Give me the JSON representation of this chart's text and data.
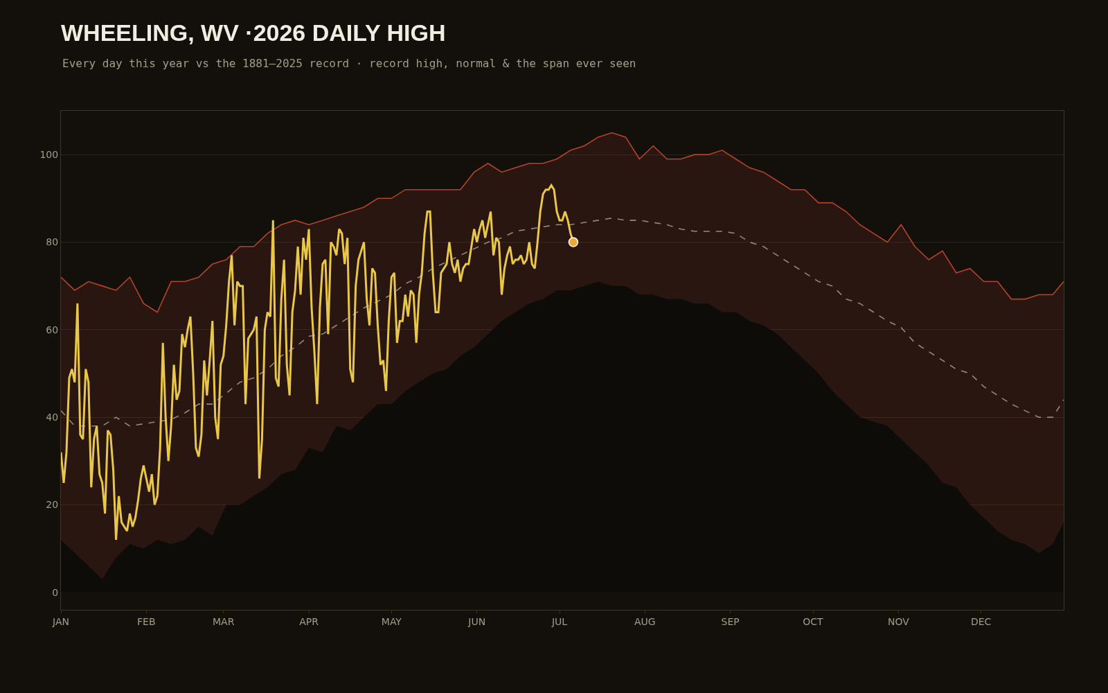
{
  "chart_data": {
    "type": "line",
    "title": "WHEELING, WV ·2026 DAILY HIGH",
    "subtitle": "Every day this year vs the 1881–2025 record · record high, normal & the span ever seen",
    "x": [
      "2026-01-01",
      "2026-01-06",
      "2026-01-11",
      "2026-01-16",
      "2026-01-21",
      "2026-01-26",
      "2026-01-31",
      "2026-02-05",
      "2026-02-10",
      "2026-02-15",
      "2026-02-20",
      "2026-02-25",
      "2026-03-02",
      "2026-03-07",
      "2026-03-12",
      "2026-03-17",
      "2026-03-22",
      "2026-03-27",
      "2026-04-01",
      "2026-04-06",
      "2026-04-11",
      "2026-04-16",
      "2026-04-21",
      "2026-04-26",
      "2026-05-01",
      "2026-05-06",
      "2026-05-11",
      "2026-05-16",
      "2026-05-21",
      "2026-05-26",
      "2026-05-31",
      "2026-06-05",
      "2026-06-10",
      "2026-06-15",
      "2026-06-20",
      "2026-06-25",
      "2026-06-30",
      "2026-07-05",
      "2026-07-10",
      "2026-07-15",
      "2026-07-20",
      "2026-07-25",
      "2026-07-30",
      "2026-08-04",
      "2026-08-09",
      "2026-08-14",
      "2026-08-19",
      "2026-08-24",
      "2026-08-29",
      "2026-09-03",
      "2026-09-08",
      "2026-09-13",
      "2026-09-18",
      "2026-09-23",
      "2026-09-28",
      "2026-10-03",
      "2026-10-08",
      "2026-10-13",
      "2026-10-18",
      "2026-10-23",
      "2026-10-28",
      "2026-11-02",
      "2026-11-07",
      "2026-11-12",
      "2026-11-17",
      "2026-11-22",
      "2026-11-27",
      "2026-12-02",
      "2026-12-07",
      "2026-12-12",
      "2026-12-17",
      "2026-12-22",
      "2026-12-27",
      "2026-12-31"
    ],
    "series": [
      {
        "type": "area",
        "color": "#b5432a",
        "values": [
          72,
          69,
          71,
          70,
          69,
          72,
          66,
          64,
          71,
          71,
          72,
          75,
          76,
          79,
          79,
          82,
          84,
          85,
          84,
          85,
          86,
          87,
          88,
          90,
          90,
          92,
          92,
          92,
          92,
          92,
          96,
          98,
          96,
          97,
          98,
          98,
          99,
          101,
          102,
          104,
          105,
          104,
          99,
          102,
          99,
          99,
          100,
          100,
          101,
          99,
          97,
          96,
          94,
          92,
          92,
          89,
          89,
          87,
          84,
          82,
          80,
          84,
          79,
          76,
          78,
          73,
          74,
          71,
          71,
          67,
          67,
          68,
          68,
          71
        ]
      },
      {
        "type": "area",
        "color": "#0e0c09",
        "values": [
          12,
          9,
          6,
          3,
          8,
          11,
          10,
          12,
          11,
          12,
          15,
          13,
          20,
          20,
          22,
          24,
          27,
          28,
          33,
          32,
          38,
          37,
          40,
          43,
          43,
          46,
          48,
          50,
          51,
          54,
          56,
          59,
          62,
          64,
          66,
          67,
          69,
          69,
          70,
          71,
          70,
          70,
          68,
          68,
          67,
          67,
          66,
          66,
          64,
          64,
          62,
          61,
          59,
          56,
          53,
          50,
          46,
          43,
          40,
          39,
          38,
          35,
          32,
          29,
          25,
          24,
          20,
          17,
          14,
          12,
          11,
          9,
          11,
          16
        ]
      },
      {
        "type": "line",
        "color": "#8f8a7c",
        "line_style": "dashed",
        "values": [
          41.5,
          38,
          38,
          38,
          40,
          38,
          38.5,
          39,
          39.5,
          41,
          43,
          43,
          45.5,
          48,
          49,
          51,
          54,
          56,
          58.5,
          59,
          61,
          63,
          65,
          66.5,
          68,
          70.5,
          72,
          74,
          75.5,
          77,
          78.5,
          80,
          81,
          82.5,
          83,
          83.5,
          84,
          84,
          84.5,
          85,
          85.5,
          85,
          85,
          84.5,
          84,
          83,
          82.5,
          82.5,
          82.5,
          82,
          80,
          79,
          77,
          75,
          73,
          71,
          70,
          67,
          66,
          64,
          62,
          60.5,
          57,
          55,
          53,
          51,
          50,
          47,
          45,
          43,
          41.5,
          40,
          40,
          44
        ]
      },
      {
        "color": "#e9c74a",
        "x": [
          "2026-01-01",
          "2026-01-02",
          "2026-01-03",
          "2026-01-04",
          "2026-01-05",
          "2026-01-06",
          "2026-01-07",
          "2026-01-08",
          "2026-01-09",
          "2026-01-10",
          "2026-01-11",
          "2026-01-12",
          "2026-01-13",
          "2026-01-14",
          "2026-01-15",
          "2026-01-16",
          "2026-01-17",
          "2026-01-18",
          "2026-01-19",
          "2026-01-20",
          "2026-01-21",
          "2026-01-22",
          "2026-01-23",
          "2026-01-24",
          "2026-01-25",
          "2026-01-26",
          "2026-01-27",
          "2026-01-28",
          "2026-01-29",
          "2026-01-30",
          "2026-01-31",
          "2026-02-01",
          "2026-02-02",
          "2026-02-03",
          "2026-02-04",
          "2026-02-05",
          "2026-02-06",
          "2026-02-07",
          "2026-02-08",
          "2026-02-09",
          "2026-02-10",
          "2026-02-11",
          "2026-02-12",
          "2026-02-13",
          "2026-02-14",
          "2026-02-15",
          "2026-02-16",
          "2026-02-17",
          "2026-02-18",
          "2026-02-19",
          "2026-02-20",
          "2026-02-21",
          "2026-02-22",
          "2026-02-23",
          "2026-02-24",
          "2026-02-25",
          "2026-02-26",
          "2026-02-27",
          "2026-02-28",
          "2026-03-01",
          "2026-03-02",
          "2026-03-03",
          "2026-03-04",
          "2026-03-05",
          "2026-03-06",
          "2026-03-07",
          "2026-03-08",
          "2026-03-09",
          "2026-03-10",
          "2026-03-11",
          "2026-03-12",
          "2026-03-13",
          "2026-03-14",
          "2026-03-15",
          "2026-03-16",
          "2026-03-17",
          "2026-03-18",
          "2026-03-19",
          "2026-03-20",
          "2026-03-21",
          "2026-03-22",
          "2026-03-23",
          "2026-03-24",
          "2026-03-25",
          "2026-03-26",
          "2026-03-27",
          "2026-03-28",
          "2026-03-29",
          "2026-03-30",
          "2026-03-31",
          "2026-04-01",
          "2026-04-02",
          "2026-04-03",
          "2026-04-04",
          "2026-04-05",
          "2026-04-06",
          "2026-04-07",
          "2026-04-08",
          "2026-04-09",
          "2026-04-10",
          "2026-04-11",
          "2026-04-12",
          "2026-04-13",
          "2026-04-14",
          "2026-04-15",
          "2026-04-16",
          "2026-04-17",
          "2026-04-18",
          "2026-04-19",
          "2026-04-20",
          "2026-04-21",
          "2026-04-22",
          "2026-04-23",
          "2026-04-24",
          "2026-04-25",
          "2026-04-26",
          "2026-04-27",
          "2026-04-28",
          "2026-04-29",
          "2026-04-30",
          "2026-05-01",
          "2026-05-02",
          "2026-05-03",
          "2026-05-04",
          "2026-05-05",
          "2026-05-06",
          "2026-05-07",
          "2026-05-08",
          "2026-05-09",
          "2026-05-10",
          "2026-05-11",
          "2026-05-12",
          "2026-05-13",
          "2026-05-14",
          "2026-05-15",
          "2026-05-16",
          "2026-05-17",
          "2026-05-18",
          "2026-05-19",
          "2026-05-20",
          "2026-05-21",
          "2026-05-22",
          "2026-05-23",
          "2026-05-24",
          "2026-05-25",
          "2026-05-26",
          "2026-05-27",
          "2026-05-28",
          "2026-05-29",
          "2026-05-30",
          "2026-05-31",
          "2026-06-01",
          "2026-06-02",
          "2026-06-03",
          "2026-06-04",
          "2026-06-05",
          "2026-06-06",
          "2026-06-07",
          "2026-06-08",
          "2026-06-09",
          "2026-06-10",
          "2026-06-11",
          "2026-06-12",
          "2026-06-13",
          "2026-06-14",
          "2026-06-15",
          "2026-06-16",
          "2026-06-17",
          "2026-06-18",
          "2026-06-19",
          "2026-06-20",
          "2026-06-21",
          "2026-06-22",
          "2026-06-23",
          "2026-06-24",
          "2026-06-25",
          "2026-06-26",
          "2026-06-27",
          "2026-06-28",
          "2026-06-29",
          "2026-06-30",
          "2026-07-01",
          "2026-07-02",
          "2026-07-03",
          "2026-07-04",
          "2026-07-05",
          "2026-07-06"
        ],
        "values": [
          32,
          25,
          32,
          49,
          51,
          48,
          66,
          36,
          35,
          51,
          48,
          24,
          35,
          38,
          27,
          25,
          18,
          37,
          36,
          28,
          12,
          22,
          16,
          15,
          14,
          18,
          15,
          17,
          21,
          26,
          29,
          26,
          23,
          27,
          20,
          22,
          33,
          57,
          40,
          30,
          38,
          52,
          44,
          46,
          59,
          56,
          60,
          63,
          50,
          33,
          31,
          36,
          53,
          45,
          53,
          62,
          40,
          35,
          52,
          54,
          61,
          71,
          77,
          61,
          71,
          70,
          70,
          43,
          58,
          59,
          60,
          63,
          26,
          35,
          60,
          64,
          63,
          85,
          49,
          47,
          67,
          76,
          52,
          45,
          64,
          69,
          79,
          68,
          81,
          76,
          83,
          65,
          55,
          43,
          65,
          75,
          76,
          59,
          80,
          79,
          77,
          83,
          82,
          75,
          81,
          51,
          48,
          70,
          76,
          78,
          80,
          67,
          61,
          74,
          73,
          61,
          52,
          53,
          46,
          62,
          72,
          73,
          57,
          62,
          62,
          68,
          63,
          69,
          68,
          57,
          68,
          73,
          82,
          87,
          87,
          73,
          64,
          64,
          73,
          74,
          75,
          80,
          75,
          73,
          76,
          71,
          74,
          75,
          75,
          79,
          83,
          80,
          83,
          85,
          81,
          84,
          87,
          77,
          81,
          80,
          68,
          74,
          77,
          79,
          75,
          76,
          76,
          77,
          75,
          76,
          80,
          75,
          74,
          80,
          87,
          91,
          92,
          92,
          93,
          92,
          87,
          85,
          85,
          87,
          85,
          82,
          80
        ]
      },
      {
        "type": "scatter",
        "color": "#f0a830",
        "marker": "circle",
        "x": [
          "2026-07-06"
        ],
        "values": [
          80
        ]
      }
    ],
    "xlim": [
      "2026-01-01",
      "2026-12-31"
    ],
    "xticks": [
      {
        "value": "2026-01-01",
        "label": "JAN"
      },
      {
        "value": "2026-02-01",
        "label": "FEB"
      },
      {
        "value": "2026-03-01",
        "label": "MAR"
      },
      {
        "value": "2026-04-01",
        "label": "APR"
      },
      {
        "value": "2026-05-01",
        "label": "MAY"
      },
      {
        "value": "2026-06-01",
        "label": "JUN"
      },
      {
        "value": "2026-07-01",
        "label": "JUL"
      },
      {
        "value": "2026-08-01",
        "label": "AUG"
      },
      {
        "value": "2026-09-01",
        "label": "SEP"
      },
      {
        "value": "2026-10-01",
        "label": "OCT"
      },
      {
        "value": "2026-11-01",
        "label": "NOV"
      },
      {
        "value": "2026-12-01",
        "label": "DEC"
      }
    ],
    "ylim": [
      -4,
      110
    ],
    "yticks": [
      0,
      20,
      40,
      60,
      80,
      100
    ],
    "grid": "y"
  }
}
